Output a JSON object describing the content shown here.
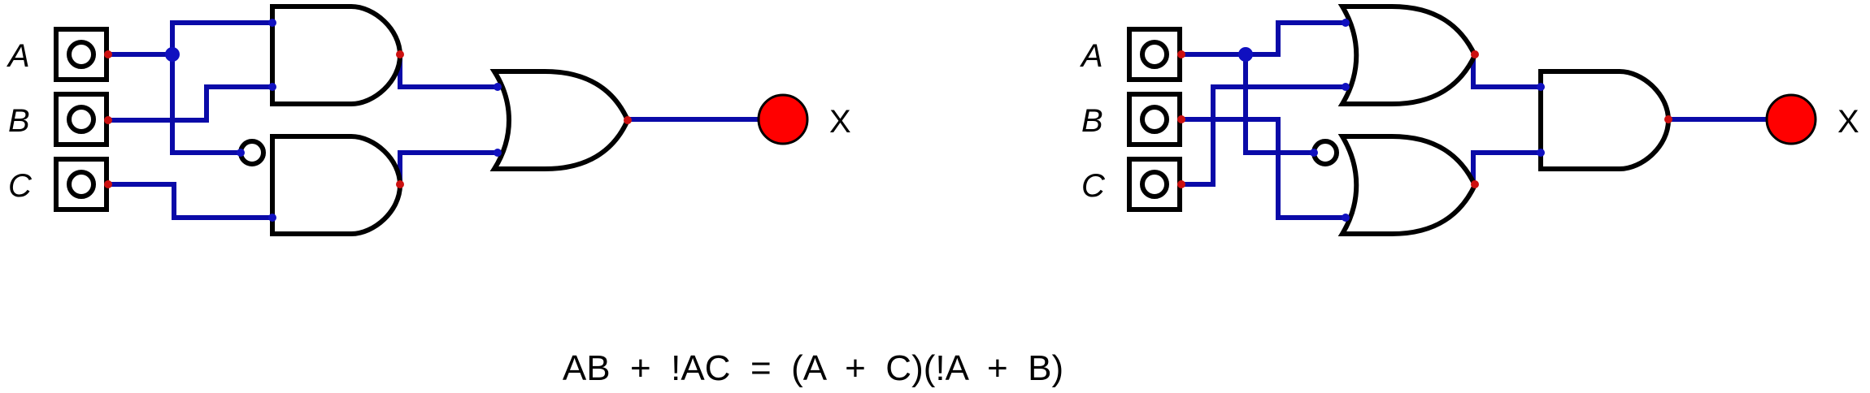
{
  "circuit_left": {
    "inputs": [
      "A",
      "B",
      "C"
    ],
    "output": "X"
  },
  "circuit_right": {
    "inputs": [
      "A",
      "B",
      "C"
    ],
    "output": "X"
  },
  "equation": "AB  +  !AC  =  (A  +  C)(!A  +  B)"
}
